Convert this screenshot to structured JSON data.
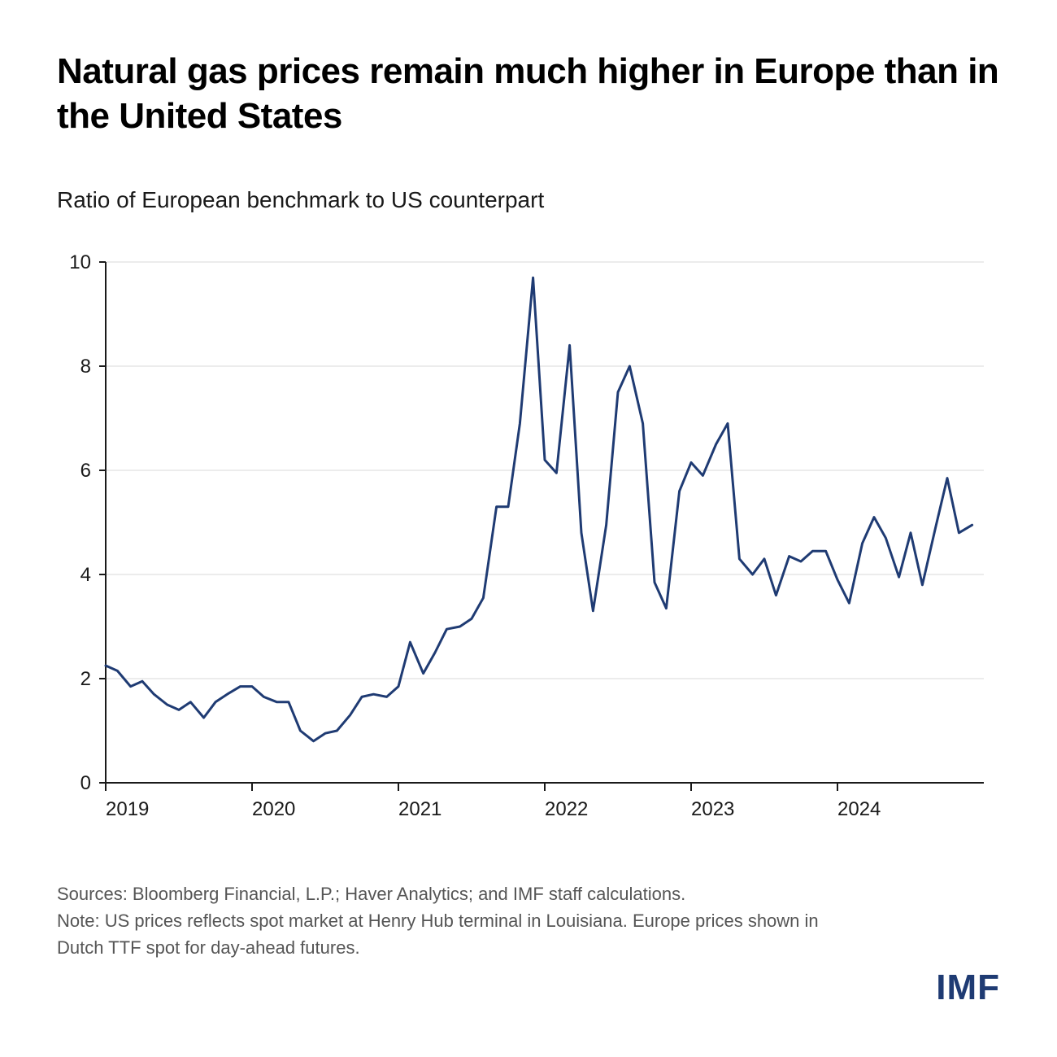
{
  "title": "Natural gas prices remain much higher in Europe than in the United States",
  "subtitle": "Ratio of European benchmark to US counterpart",
  "footnotes": {
    "sources": "Sources: Bloomberg Financial, L.P.; Haver Analytics; and IMF staff calculations.",
    "note": "Note: US prices reflects spot market at Henry Hub terminal in Louisiana. Europe prices shown in Dutch TTF spot for day-ahead futures."
  },
  "logo_text": "IMF",
  "chart": {
    "type": "line",
    "x_start": 2019.0,
    "x_end": 2025.0,
    "x_ticks": [
      2019,
      2020,
      2021,
      2022,
      2023,
      2024
    ],
    "x_tick_labels": [
      "2019",
      "2020",
      "2021",
      "2022",
      "2023",
      "2024"
    ],
    "y_min": 0,
    "y_max": 10,
    "y_ticks": [
      0,
      2,
      4,
      6,
      8,
      10
    ],
    "y_tick_labels": [
      "0",
      "2",
      "4",
      "6",
      "8",
      "10"
    ],
    "grid_color": "#d9d9d9",
    "axis_color": "#1a1a1a",
    "axis_width": 2,
    "line_color": "#1f3b73",
    "line_width": 3,
    "background_color": "#ffffff",
    "tick_fontsize": 24,
    "tick_color": "#1a1a1a",
    "series": [
      {
        "x": 2019.0,
        "y": 2.25
      },
      {
        "x": 2019.08,
        "y": 2.15
      },
      {
        "x": 2019.17,
        "y": 1.85
      },
      {
        "x": 2019.25,
        "y": 1.95
      },
      {
        "x": 2019.33,
        "y": 1.7
      },
      {
        "x": 2019.42,
        "y": 1.5
      },
      {
        "x": 2019.5,
        "y": 1.4
      },
      {
        "x": 2019.58,
        "y": 1.55
      },
      {
        "x": 2019.67,
        "y": 1.25
      },
      {
        "x": 2019.75,
        "y": 1.55
      },
      {
        "x": 2019.83,
        "y": 1.7
      },
      {
        "x": 2019.92,
        "y": 1.85
      },
      {
        "x": 2020.0,
        "y": 1.85
      },
      {
        "x": 2020.08,
        "y": 1.65
      },
      {
        "x": 2020.17,
        "y": 1.55
      },
      {
        "x": 2020.25,
        "y": 1.55
      },
      {
        "x": 2020.33,
        "y": 1.0
      },
      {
        "x": 2020.42,
        "y": 0.8
      },
      {
        "x": 2020.5,
        "y": 0.95
      },
      {
        "x": 2020.58,
        "y": 1.0
      },
      {
        "x": 2020.67,
        "y": 1.3
      },
      {
        "x": 2020.75,
        "y": 1.65
      },
      {
        "x": 2020.83,
        "y": 1.7
      },
      {
        "x": 2020.92,
        "y": 1.65
      },
      {
        "x": 2021.0,
        "y": 1.85
      },
      {
        "x": 2021.08,
        "y": 2.7
      },
      {
        "x": 2021.17,
        "y": 2.1
      },
      {
        "x": 2021.25,
        "y": 2.5
      },
      {
        "x": 2021.33,
        "y": 2.95
      },
      {
        "x": 2021.42,
        "y": 3.0
      },
      {
        "x": 2021.5,
        "y": 3.15
      },
      {
        "x": 2021.58,
        "y": 3.55
      },
      {
        "x": 2021.67,
        "y": 5.3
      },
      {
        "x": 2021.75,
        "y": 5.3
      },
      {
        "x": 2021.83,
        "y": 6.9
      },
      {
        "x": 2021.92,
        "y": 9.7
      },
      {
        "x": 2022.0,
        "y": 6.2
      },
      {
        "x": 2022.08,
        "y": 5.95
      },
      {
        "x": 2022.17,
        "y": 8.4
      },
      {
        "x": 2022.25,
        "y": 4.8
      },
      {
        "x": 2022.33,
        "y": 3.3
      },
      {
        "x": 2022.42,
        "y": 4.95
      },
      {
        "x": 2022.5,
        "y": 7.5
      },
      {
        "x": 2022.58,
        "y": 8.0
      },
      {
        "x": 2022.67,
        "y": 6.9
      },
      {
        "x": 2022.75,
        "y": 3.85
      },
      {
        "x": 2022.83,
        "y": 3.35
      },
      {
        "x": 2022.92,
        "y": 5.6
      },
      {
        "x": 2023.0,
        "y": 6.15
      },
      {
        "x": 2023.08,
        "y": 5.9
      },
      {
        "x": 2023.17,
        "y": 6.5
      },
      {
        "x": 2023.25,
        "y": 6.9
      },
      {
        "x": 2023.33,
        "y": 4.3
      },
      {
        "x": 2023.42,
        "y": 4.0
      },
      {
        "x": 2023.5,
        "y": 4.3
      },
      {
        "x": 2023.58,
        "y": 3.6
      },
      {
        "x": 2023.67,
        "y": 4.35
      },
      {
        "x": 2023.75,
        "y": 4.25
      },
      {
        "x": 2023.83,
        "y": 4.45
      },
      {
        "x": 2023.92,
        "y": 4.45
      },
      {
        "x": 2024.0,
        "y": 3.9
      },
      {
        "x": 2024.08,
        "y": 3.45
      },
      {
        "x": 2024.17,
        "y": 4.6
      },
      {
        "x": 2024.25,
        "y": 5.1
      },
      {
        "x": 2024.33,
        "y": 4.7
      },
      {
        "x": 2024.42,
        "y": 3.95
      },
      {
        "x": 2024.5,
        "y": 4.8
      },
      {
        "x": 2024.58,
        "y": 3.8
      },
      {
        "x": 2024.67,
        "y": 4.9
      },
      {
        "x": 2024.75,
        "y": 5.85
      },
      {
        "x": 2024.83,
        "y": 4.8
      },
      {
        "x": 2024.92,
        "y": 4.95
      }
    ]
  }
}
